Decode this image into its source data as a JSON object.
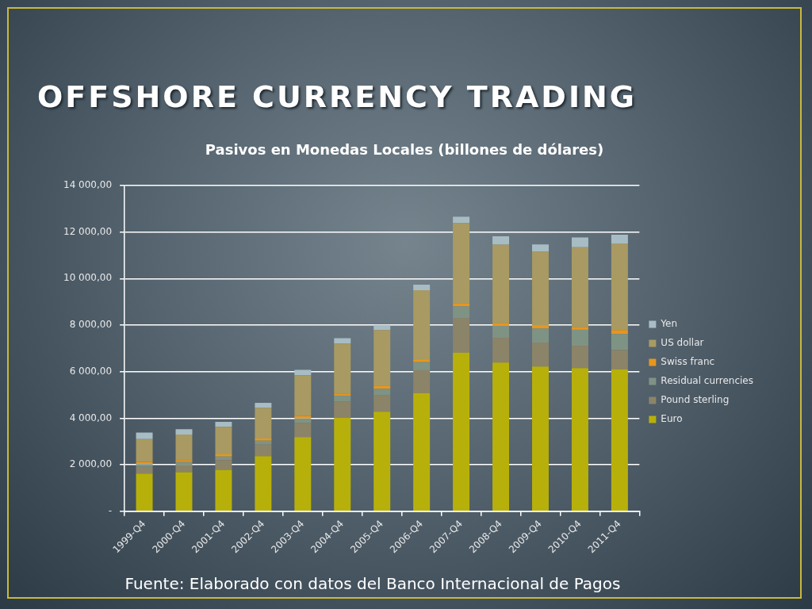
{
  "chart_data": {
    "type": "bar",
    "stacked": true,
    "title": "OFFSHORE CURRENCY TRADING",
    "subtitle": "Pasivos en Monedas Locales (billones de dólares)",
    "annotations": [
      "Fuente: Elaborado con datos del Banco Internacional de Pagos"
    ],
    "categories": [
      "1999-Q4",
      "2000-Q4",
      "2001-Q4",
      "2002-Q4",
      "2003-Q4",
      "2004-Q4",
      "2005-Q4",
      "2006-Q4",
      "2007-Q4",
      "2008-Q4",
      "2009-Q4",
      "2010-Q4",
      "2011-Q4"
    ],
    "series": [
      {
        "name": "Euro",
        "color": "#b8b00a",
        "values": [
          1620,
          1680,
          1780,
          2370,
          3190,
          4010,
          4280,
          5080,
          6820,
          6390,
          6220,
          6150,
          6100
        ]
      },
      {
        "name": "Pound sterling",
        "color": "#8c8468",
        "values": [
          290,
          310,
          420,
          490,
          600,
          710,
          720,
          980,
          1480,
          1060,
          1030,
          960,
          830
        ]
      },
      {
        "name": "Residual currencies",
        "color": "#7f9384",
        "values": [
          120,
          120,
          150,
          170,
          200,
          250,
          270,
          350,
          510,
          520,
          610,
          690,
          690
        ]
      },
      {
        "name": "Swiss franc",
        "color": "#e8961e",
        "values": [
          90,
          90,
          100,
          100,
          100,
          90,
          120,
          120,
          130,
          120,
          120,
          120,
          170
        ]
      },
      {
        "name": "US dollar",
        "color": "#a89a62",
        "values": [
          980,
          1100,
          1180,
          1320,
          1760,
          2150,
          2400,
          2970,
          3450,
          3370,
          3180,
          3430,
          3720
        ]
      },
      {
        "name": "Yen",
        "color": "#a8bcc4",
        "values": [
          280,
          230,
          210,
          210,
          230,
          230,
          220,
          240,
          270,
          360,
          310,
          420,
          380
        ]
      }
    ],
    "ylim": [
      0,
      14000
    ],
    "yticks": [
      {
        "value": 0,
        "label": "-"
      },
      {
        "value": 2000,
        "label": "2 000,00"
      },
      {
        "value": 4000,
        "label": "4 000,00"
      },
      {
        "value": 6000,
        "label": "6 000,00"
      },
      {
        "value": 8000,
        "label": "8 000,00"
      },
      {
        "value": 10000,
        "label": "10 000,00"
      },
      {
        "value": 12000,
        "label": "12 000,00"
      },
      {
        "value": 14000,
        "label": "14 000,00"
      }
    ],
    "grid": "y",
    "legend": "right"
  }
}
